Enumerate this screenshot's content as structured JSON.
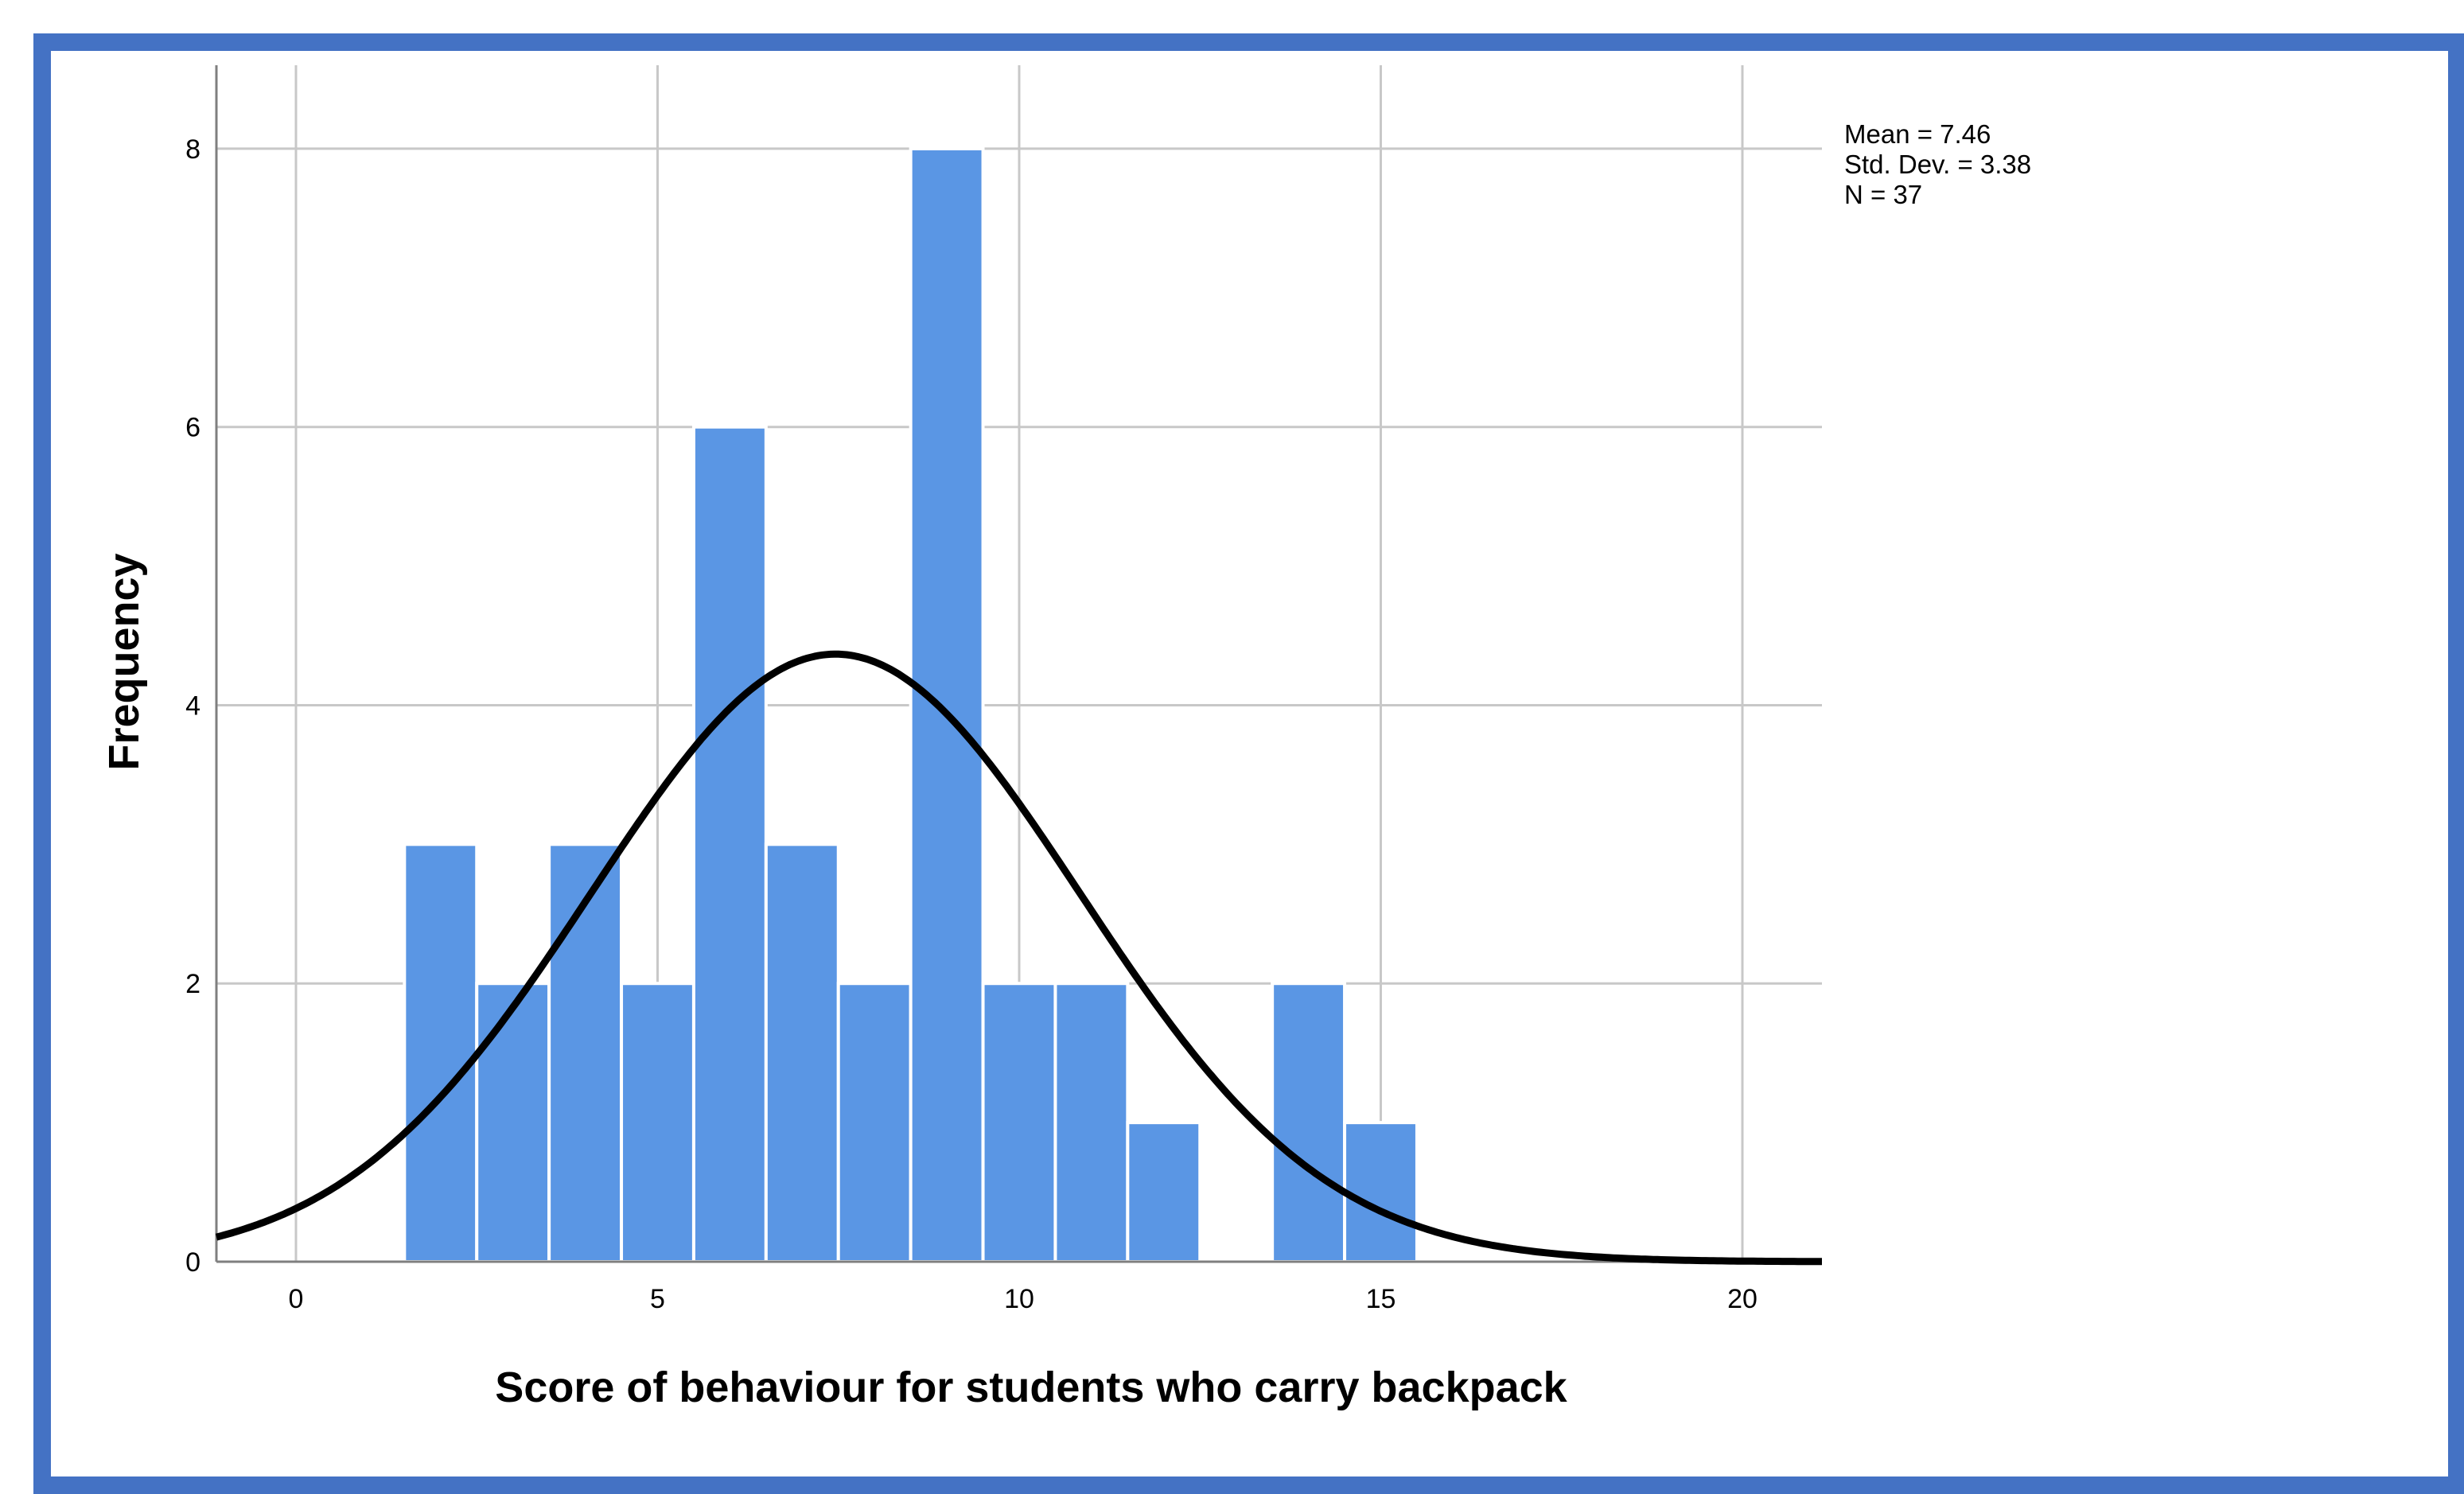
{
  "chart_data": {
    "type": "histogram",
    "xlabel": "Score of behaviour for students who carry backpack",
    "ylabel": "Frequency",
    "xlim": [
      -1.1,
      21.1
    ],
    "ylim": [
      0,
      8.6
    ],
    "x_ticks": [
      0,
      5,
      10,
      15,
      20
    ],
    "y_ticks": [
      0,
      2,
      4,
      6,
      8
    ],
    "grid": true,
    "bins": [
      {
        "start": 1.5,
        "end": 2.5,
        "count": 3
      },
      {
        "start": 2.5,
        "end": 3.5,
        "count": 2
      },
      {
        "start": 3.5,
        "end": 4.5,
        "count": 3
      },
      {
        "start": 4.5,
        "end": 5.5,
        "count": 2
      },
      {
        "start": 5.5,
        "end": 6.5,
        "count": 6
      },
      {
        "start": 6.5,
        "end": 7.5,
        "count": 3
      },
      {
        "start": 7.5,
        "end": 8.5,
        "count": 2
      },
      {
        "start": 8.5,
        "end": 9.5,
        "count": 8
      },
      {
        "start": 9.5,
        "end": 10.5,
        "count": 2
      },
      {
        "start": 10.5,
        "end": 11.5,
        "count": 2
      },
      {
        "start": 11.5,
        "end": 12.5,
        "count": 1
      },
      {
        "start": 12.5,
        "end": 13.5,
        "count": 0
      },
      {
        "start": 13.5,
        "end": 14.5,
        "count": 2
      },
      {
        "start": 14.5,
        "end": 15.5,
        "count": 1
      }
    ],
    "normal_curve": {
      "mean": 7.46,
      "std": 3.38,
      "n": 37,
      "bin_width": 1
    },
    "bar_color": "#5a96e4",
    "curve_color": "#000000"
  },
  "stats": {
    "mean": "Mean = 7.46",
    "std": "Std. Dev. = 3.38",
    "n": "N = 37"
  },
  "frame_color": "#4472c4"
}
